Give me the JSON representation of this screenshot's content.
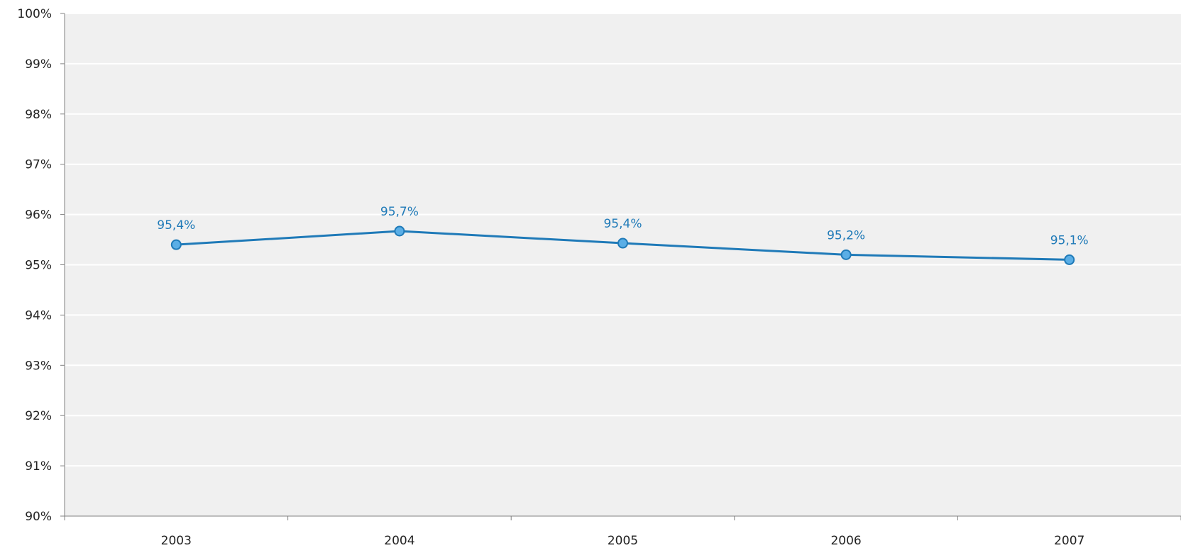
{
  "chart_data": {
    "type": "line",
    "categories": [
      "2003",
      "2004",
      "2005",
      "2006",
      "2007"
    ],
    "series": [
      {
        "values": [
          95.4,
          95.67,
          95.43,
          95.2,
          95.1
        ],
        "data_labels": [
          "95,4%",
          "95,7%",
          "95,4%",
          "95,2%",
          "95,1%"
        ]
      }
    ],
    "ylim": [
      90,
      100
    ],
    "y_ticks": [
      90,
      91,
      92,
      93,
      94,
      95,
      96,
      97,
      98,
      99,
      100
    ],
    "y_tick_labels": [
      "90%",
      "91%",
      "92%",
      "93%",
      "94%",
      "95%",
      "96%",
      "97%",
      "98%",
      "99%",
      "100%"
    ],
    "title": "",
    "xlabel": "",
    "ylabel": "",
    "grid": true,
    "legend": "none",
    "colors": {
      "series": "#1f7ab8",
      "marker": "#5aaee6",
      "plot_background": "#f0f0f0",
      "gridline": "#ffffff",
      "axis": "#808080"
    }
  }
}
